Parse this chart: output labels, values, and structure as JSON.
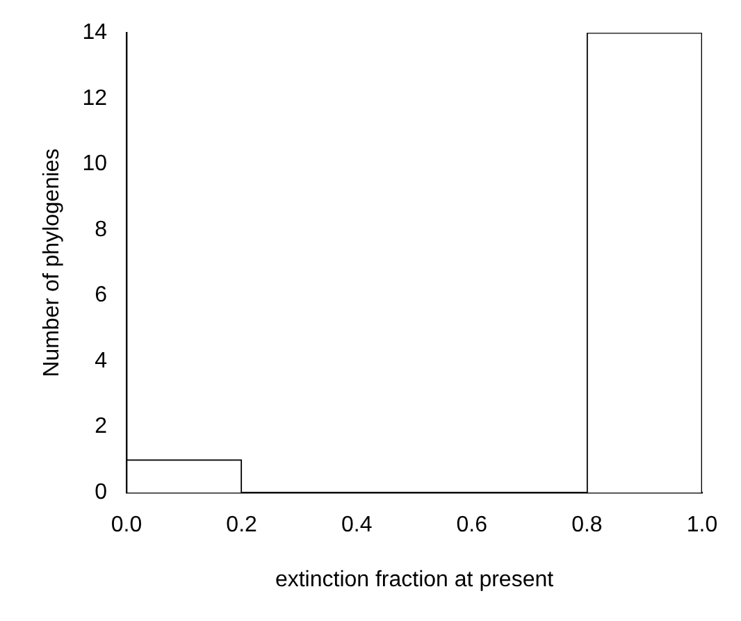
{
  "chart_data": {
    "type": "histogram",
    "xlabel": "extinction fraction at present",
    "ylabel": "Number of phylogenies",
    "bins": [
      0,
      0.2,
      0.4,
      0.6,
      0.8,
      1.0
    ],
    "values": [
      1,
      0,
      0,
      0,
      14
    ],
    "color": "#ffffff",
    "xlim": [
      0,
      1
    ],
    "xticks": [
      {
        "value": 0,
        "label": "0.0"
      },
      {
        "value": 0.2,
        "label": "0.2"
      },
      {
        "value": 0.4,
        "label": "0.4"
      },
      {
        "value": 0.6,
        "label": "0.6"
      },
      {
        "value": 0.8,
        "label": "0.8"
      },
      {
        "value": 1,
        "label": "1.0"
      }
    ],
    "ylim": [
      0,
      14
    ],
    "yticks": [
      0,
      2,
      4,
      6,
      8,
      10,
      12,
      14
    ],
    "grid": false
  }
}
